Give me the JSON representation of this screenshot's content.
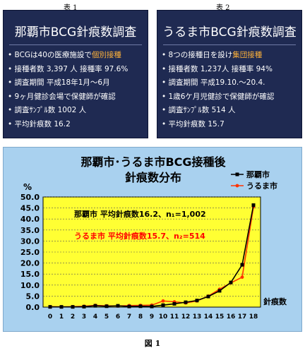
{
  "table_labels": [
    "表 1",
    "表 2"
  ],
  "panels": [
    {
      "title": "那覇市BCG針痕数調査",
      "items": [
        {
          "text": "BCGは40の医療施設で",
          "highlight": "個別接種"
        },
        {
          "text": "接種者数  3,397 人 接種率 97.6%"
        },
        {
          "text": "調査期間   平成18年1月～6月"
        },
        {
          "text": "9ヶ月健診会場で保健師が確認"
        },
        {
          "text": "調査ｻﾝﾌﾟﾙ数  1002 人"
        },
        {
          "text": "平均針痕数   16.2"
        }
      ]
    },
    {
      "title": "うるま市BCG針痕数調査",
      "items": [
        {
          "text": "8つの接種日を設け",
          "highlight": "集団接種"
        },
        {
          "text": "接種者数 1,237人  接種率 94%"
        },
        {
          "text": "調査期間   平成19.10.～20.4."
        },
        {
          "text": "1歳6ケ月児健診で保健師が確認"
        },
        {
          "text": "調査ｻﾝﾌﾟﾙ数  514 人"
        },
        {
          "text": "平均針痕数    15.7"
        }
      ]
    }
  ],
  "figure_caption": "図 1",
  "chart_data": {
    "type": "line",
    "title_lines": [
      "那覇市･うるま市BCG接種後",
      "針痕数分布"
    ],
    "ylabel": "%",
    "xlabel": "針痕数",
    "x": [
      0,
      1,
      2,
      3,
      4,
      5,
      6,
      7,
      8,
      9,
      10,
      11,
      12,
      13,
      14,
      15,
      16,
      17,
      18
    ],
    "ylim": [
      0,
      50
    ],
    "yticks": [
      "0.0",
      "5.0",
      "10.0",
      "15.0",
      "20.0",
      "25.0",
      "30.0",
      "35.0",
      "40.0",
      "45.0",
      "50.0"
    ],
    "grid": true,
    "legend_position": "top-right",
    "series": [
      {
        "name": "那覇市",
        "color": "#000000",
        "marker": "square",
        "values": [
          0.1,
          0.1,
          0.1,
          0.2,
          0.6,
          0.4,
          0.6,
          0.3,
          0.4,
          0.3,
          0.9,
          1.5,
          2.2,
          3.0,
          4.8,
          7.4,
          11.2,
          19.2,
          46.3
        ]
      },
      {
        "name": "うるま市",
        "color": "#ff3300",
        "marker": "circle",
        "values": [
          0.2,
          0.1,
          0.2,
          0.4,
          0.8,
          0.6,
          0.5,
          0.7,
          0.8,
          0.9,
          2.8,
          2.4,
          1.9,
          2.8,
          5.0,
          8.1,
          11.0,
          13.6,
          45.5
        ]
      }
    ],
    "annotations": [
      {
        "text": "那覇市   平均針痕数16.2、n₁=1,002",
        "color": "#000000"
      },
      {
        "text": "うるま市   平均針痕数15.7、n₂=514",
        "color": "#ff0000"
      }
    ]
  }
}
